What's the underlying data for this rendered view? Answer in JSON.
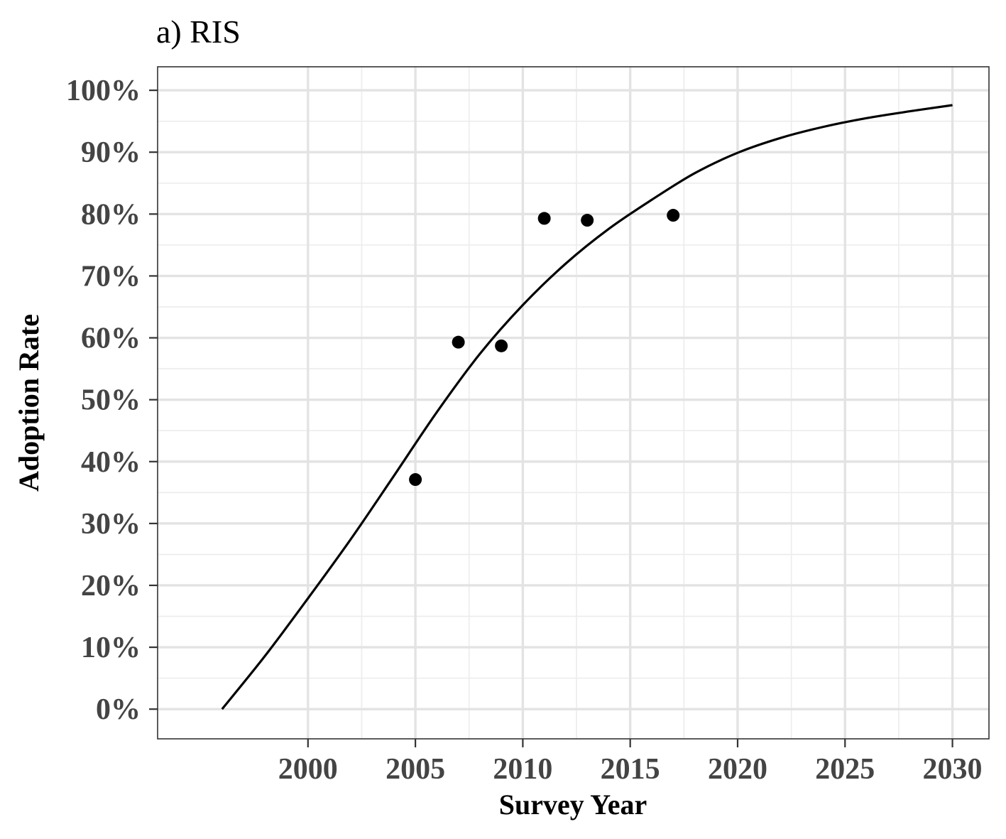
{
  "chart_data": {
    "type": "scatter",
    "title": "a) RIS",
    "xlabel": "Survey Year",
    "ylabel": "Adoption Rate",
    "xlim": [
      1993,
      2031.7
    ],
    "ylim": [
      -4.8,
      103.8
    ],
    "x_ticks": [
      2000,
      2005,
      2010,
      2015,
      2020,
      2025,
      2030
    ],
    "x_tick_labels": [
      "2000",
      "2005",
      "2010",
      "2015",
      "2020",
      "2025",
      "2030"
    ],
    "y_ticks": [
      0,
      10,
      20,
      30,
      40,
      50,
      60,
      70,
      80,
      90,
      100
    ],
    "y_tick_labels": [
      "0%",
      "10%",
      "20%",
      "30%",
      "40%",
      "50%",
      "60%",
      "70%",
      "80%",
      "90%",
      "100%"
    ],
    "grid": true,
    "series": [
      {
        "kind": "points",
        "color": "#000000",
        "x": [
          2005,
          2007,
          2009,
          2011,
          2013,
          2017
        ],
        "y": [
          37.1,
          59.3,
          58.7,
          79.3,
          79.0,
          79.8
        ]
      },
      {
        "kind": "line",
        "color": "#000000",
        "x": [
          1996,
          1998,
          2000,
          2002,
          2004,
          2006,
          2008,
          2010,
          2012,
          2014,
          2016,
          2018,
          2020,
          2022,
          2024,
          2026,
          2028,
          2030
        ],
        "y": [
          0,
          8.6,
          17.9,
          27.5,
          37.7,
          48.0,
          57.4,
          65.3,
          72.0,
          77.6,
          82.3,
          86.6,
          89.9,
          92.3,
          94.1,
          95.5,
          96.6,
          97.6
        ]
      }
    ]
  }
}
